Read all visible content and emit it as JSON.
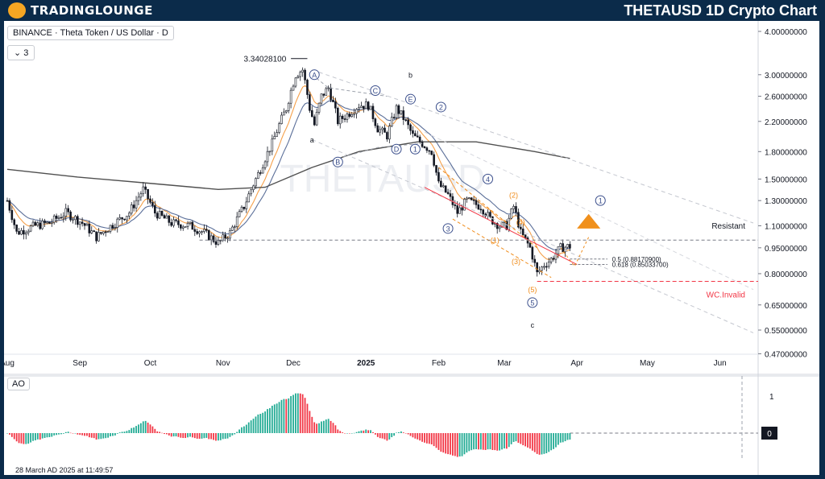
{
  "header": {
    "logo_text": "TRADINGLOUNGE",
    "title": "THETAUSD 1D Crypto Chart"
  },
  "chart": {
    "symbol": "BINANCE · Theta Token / US Dollar · D",
    "count": "3",
    "watermark": "THETAUSD",
    "high_label": "3.34028100",
    "resistant_label": "Resistant",
    "invalid_label": "WC.Invalid",
    "fib_05": "0.5 (0.88170900)",
    "fib_0618": "0.618 (0.85033700)",
    "timestamp": "28 March AD 2025 at 11:49:57"
  },
  "colors": {
    "up": "#22ab94",
    "down": "#f23645",
    "candle": "#131722",
    "ema_orange": "#f5a04a",
    "ema_blue": "#5b6f99",
    "sma_long": "#505050",
    "wave_blue": "#3b4f8c",
    "wave_orange": "#f08c1a",
    "invalid": "#f23645"
  },
  "chart_data": {
    "type": "candlestick",
    "price_scale": "log",
    "price_ticks": [
      "4.00000000",
      "3.00000000",
      "2.60000000",
      "2.20000000",
      "1.80000000",
      "1.50000000",
      "1.30000000",
      "1.10000000",
      "0.95000000",
      "0.80000000",
      "0.65000000",
      "0.55000000",
      "0.47000000"
    ],
    "time_ticks": [
      "Aug",
      "Sep",
      "Oct",
      "Nov",
      "Dec",
      "2025",
      "Feb",
      "Mar",
      "Apr",
      "May",
      "Jun"
    ],
    "levels": {
      "resistant": 1.0,
      "fib_0.5": 0.8817,
      "fib_0.618": 0.85034,
      "invalid": 0.76,
      "high": 3.34028
    },
    "waves": [
      {
        "label": "A",
        "price": 3.0
      },
      {
        "label": "B",
        "price": 1.68
      },
      {
        "label": "C",
        "price": 2.7
      },
      {
        "label": "D",
        "price": 1.83
      },
      {
        "label": "E",
        "price": 2.55
      },
      {
        "label": "a",
        "price": 1.95
      },
      {
        "label": "b",
        "price": 3.0
      },
      {
        "label": "c",
        "price": 0.57
      },
      {
        "label": "1",
        "price": 1.83
      },
      {
        "label": "2",
        "price": 2.42
      },
      {
        "label": "3",
        "price": 1.08
      },
      {
        "label": "4",
        "price": 1.5
      },
      {
        "label": "5",
        "price": 0.66
      },
      {
        "label": "(1)",
        "price": 1.0
      },
      {
        "label": "(2)",
        "price": 1.35
      },
      {
        "label": "(3)",
        "price": 0.87
      },
      {
        "label": "(4)",
        "price": 1.13
      },
      {
        "label": "(5)",
        "price": 0.72
      },
      {
        "label": "1",
        "price": 1.3
      }
    ],
    "ao_ticks": [
      "1",
      "0"
    ],
    "series": [
      {
        "name": "",
        "values": []
      }
    ]
  }
}
